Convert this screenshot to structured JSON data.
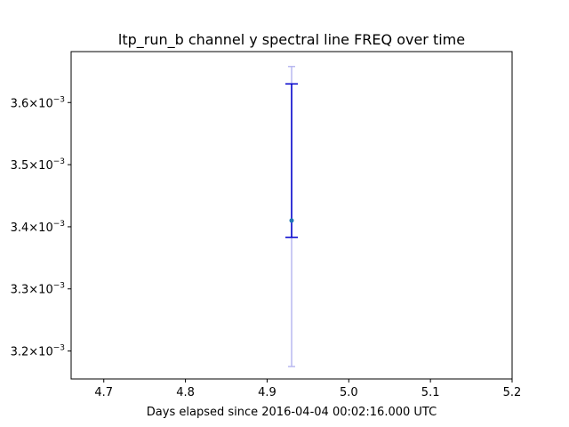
{
  "chart_data": {
    "type": "scatter",
    "title": "ltp_run_b channel y spectral line FREQ over time",
    "xlabel": "Days elapsed since 2016-04-04 00:02:16.000 UTC",
    "ylabel": "",
    "xlim": [
      4.66,
      5.2
    ],
    "ylim": [
      0.003155,
      0.003682
    ],
    "x_ticks": [
      {
        "value": 4.7,
        "label": "4.7"
      },
      {
        "value": 4.8,
        "label": "4.8"
      },
      {
        "value": 4.9,
        "label": "4.9"
      },
      {
        "value": 5.0,
        "label": "5.0"
      },
      {
        "value": 5.1,
        "label": "5.1"
      },
      {
        "value": 5.2,
        "label": "5.2"
      }
    ],
    "y_ticks": [
      {
        "value": 0.0032,
        "mantissa": "3.2",
        "base": "10",
        "exp": "−3"
      },
      {
        "value": 0.0033,
        "mantissa": "3.3",
        "base": "10",
        "exp": "−3"
      },
      {
        "value": 0.0034,
        "mantissa": "3.4",
        "base": "10",
        "exp": "−3"
      },
      {
        "value": 0.0035,
        "mantissa": "3.5",
        "base": "10",
        "exp": "−3"
      },
      {
        "value": 0.0036,
        "mantissa": "3.6",
        "base": "10",
        "exp": "−3"
      }
    ],
    "grid": false,
    "points": [
      {
        "x": 4.93,
        "y": 0.00341,
        "err_inner": [
          0.003383,
          0.00363
        ],
        "err_outer": [
          0.003175,
          0.003658
        ]
      }
    ],
    "colors": {
      "marker": "#1f77b4",
      "inner_error": "#0000cc",
      "outer_error": "#b8b8f0"
    }
  }
}
